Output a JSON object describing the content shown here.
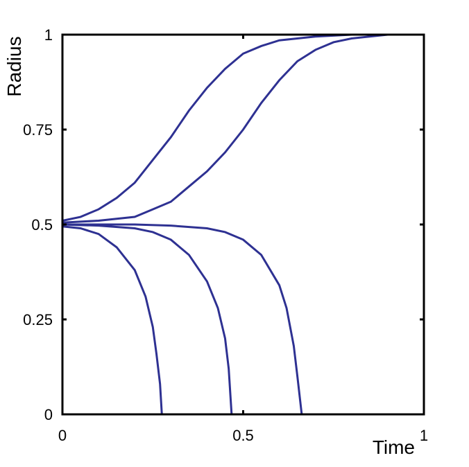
{
  "chart_data": {
    "type": "line",
    "x_label": "Time",
    "y_label": "Radius",
    "xlim": [
      0,
      1
    ],
    "ylim": [
      0,
      1
    ],
    "xticks": [
      0,
      0.5,
      1
    ],
    "yticks": [
      0,
      0.25,
      0.5,
      0.75,
      1
    ],
    "series": [
      {
        "color": "#2e3192",
        "x": [
          0,
          0.05,
          0.1,
          0.15,
          0.2,
          0.25,
          0.3,
          0.35,
          0.4,
          0.45,
          0.5,
          0.55,
          0.6,
          0.7,
          0.8,
          0.9,
          1
        ],
        "values": [
          0.51,
          0.52,
          0.54,
          0.57,
          0.61,
          0.67,
          0.73,
          0.8,
          0.86,
          0.91,
          0.95,
          0.97,
          0.985,
          0.995,
          1,
          1,
          1
        ]
      },
      {
        "color": "#2e3192",
        "x": [
          0,
          0.1,
          0.2,
          0.25,
          0.3,
          0.35,
          0.4,
          0.45,
          0.5,
          0.55,
          0.6,
          0.65,
          0.7,
          0.75,
          0.8,
          0.9,
          1
        ],
        "values": [
          0.505,
          0.51,
          0.52,
          0.54,
          0.56,
          0.6,
          0.64,
          0.69,
          0.75,
          0.82,
          0.88,
          0.93,
          0.96,
          0.98,
          0.99,
          1,
          1
        ]
      },
      {
        "color": "#2e3192",
        "x": [
          0,
          0.2,
          0.3,
          0.4,
          0.45,
          0.5,
          0.55,
          0.6,
          0.62,
          0.64,
          0.65,
          0.662,
          1
        ],
        "values": [
          0.5,
          0.5,
          0.497,
          0.49,
          0.48,
          0.46,
          0.42,
          0.34,
          0.28,
          0.18,
          0.1,
          0,
          0
        ]
      },
      {
        "color": "#2e3192",
        "x": [
          0,
          0.1,
          0.2,
          0.25,
          0.3,
          0.35,
          0.4,
          0.43,
          0.45,
          0.46,
          0.468,
          1
        ],
        "values": [
          0.5,
          0.497,
          0.49,
          0.48,
          0.46,
          0.42,
          0.35,
          0.28,
          0.2,
          0.12,
          0,
          0
        ]
      },
      {
        "color": "#2e3192",
        "x": [
          0,
          0.05,
          0.1,
          0.15,
          0.2,
          0.23,
          0.25,
          0.26,
          0.27,
          0.275,
          1
        ],
        "values": [
          0.495,
          0.49,
          0.475,
          0.44,
          0.38,
          0.31,
          0.23,
          0.16,
          0.08,
          0,
          0
        ]
      }
    ]
  }
}
